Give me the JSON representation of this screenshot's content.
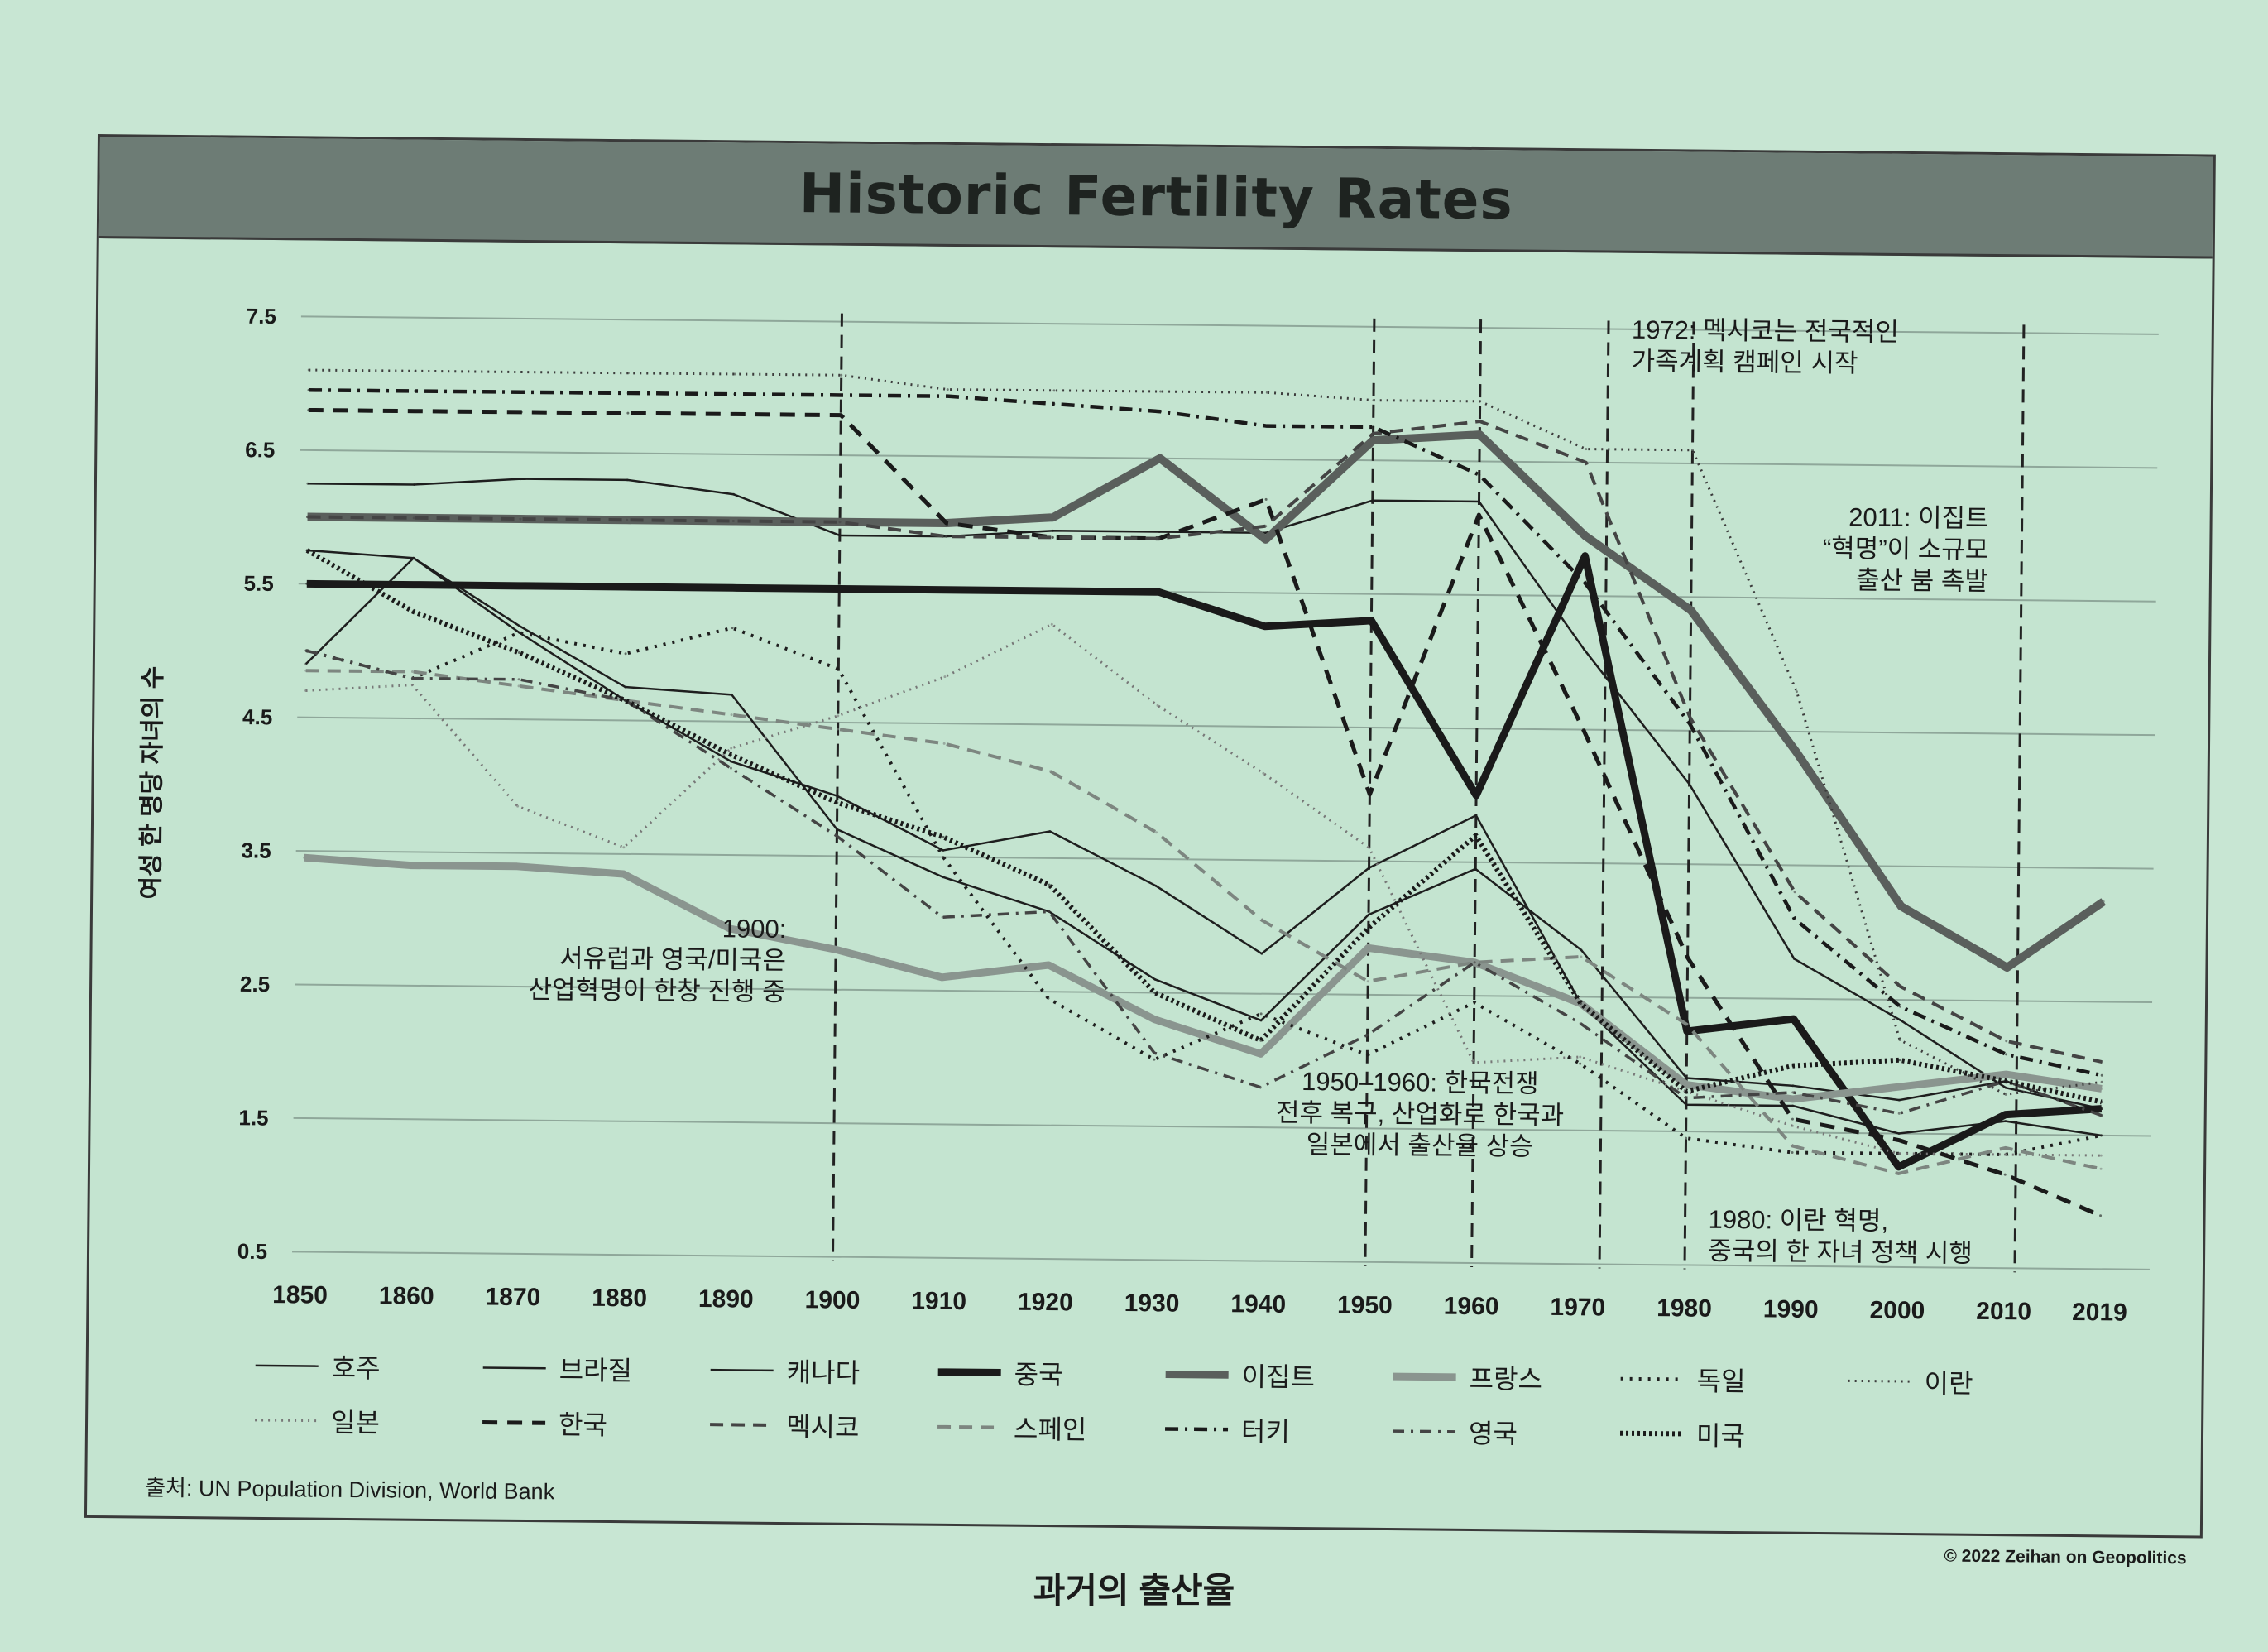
{
  "title": "Historic Fertility Rates",
  "caption": "과거의 출산율",
  "source": "출처: UN Population Division, World Bank",
  "copyright": "© 2022 Zeihan on Geopolitics",
  "chart_data": {
    "type": "line",
    "title": "Historic Fertility Rates",
    "ylabel": "여성 한 명당 자녀의 수",
    "xlabel": "",
    "ylim": [
      0.5,
      7.5
    ],
    "yticks": [
      "7.5",
      "6.5",
      "5.5",
      "4.5",
      "3.5",
      "2.5",
      "1.5",
      "0.5"
    ],
    "ytick_values": [
      7.5,
      6.5,
      5.5,
      4.5,
      3.5,
      2.5,
      1.5,
      0.5
    ],
    "x": [
      1850,
      1860,
      1870,
      1880,
      1890,
      1900,
      1910,
      1920,
      1930,
      1940,
      1950,
      1960,
      1970,
      1980,
      1990,
      2000,
      2010,
      2019
    ],
    "xtick_labels": [
      "1850",
      "1860",
      "1870",
      "1880",
      "1890",
      "1900",
      "1910",
      "1920",
      "1930",
      "1940",
      "1950",
      "1960",
      "1970",
      "1980",
      "1990",
      "2000",
      "2010",
      "2019"
    ],
    "grid": true,
    "series": [
      {
        "name": "호주",
        "style": "thin-solid",
        "values": [
          4.9,
          5.7,
          5.2,
          4.75,
          4.7,
          3.7,
          3.35,
          3.1,
          2.6,
          2.3,
          3.1,
          3.45,
          2.85,
          1.9,
          1.85,
          1.75,
          1.9,
          1.65
        ]
      },
      {
        "name": "브라질",
        "style": "thin-solid",
        "values": [
          6.25,
          6.25,
          6.3,
          6.3,
          6.2,
          5.9,
          5.9,
          5.95,
          5.95,
          5.95,
          6.2,
          6.2,
          5.1,
          4.1,
          2.8,
          2.35,
          1.85,
          1.7
        ]
      },
      {
        "name": "캐나다",
        "style": "thin-solid",
        "values": [
          5.75,
          5.7,
          5.15,
          4.65,
          4.2,
          3.95,
          3.55,
          3.7,
          3.3,
          2.8,
          3.45,
          3.85,
          2.45,
          1.7,
          1.7,
          1.5,
          1.6,
          1.5
        ]
      },
      {
        "name": "중국",
        "style": "bold-solid",
        "values": [
          5.5,
          5.5,
          5.5,
          5.5,
          5.5,
          5.5,
          5.5,
          5.5,
          5.5,
          5.25,
          5.3,
          4.0,
          5.8,
          2.25,
          2.35,
          1.25,
          1.65,
          1.7
        ]
      },
      {
        "name": "이집트",
        "style": "bold-gray",
        "values": [
          6.0,
          6.0,
          6.0,
          6.0,
          6.0,
          6.0,
          6.0,
          6.05,
          6.5,
          5.9,
          6.65,
          6.7,
          5.95,
          5.4,
          4.35,
          3.2,
          2.75,
          3.25
        ]
      },
      {
        "name": "프랑스",
        "style": "bold-lightgray",
        "values": [
          3.45,
          3.4,
          3.4,
          3.35,
          2.95,
          2.8,
          2.6,
          2.7,
          2.3,
          2.05,
          2.85,
          2.75,
          2.45,
          1.85,
          1.75,
          1.85,
          1.95,
          1.85
        ]
      },
      {
        "name": "독일",
        "style": "dotted",
        "values": [
          5.0,
          4.8,
          5.15,
          5.0,
          5.2,
          4.9,
          3.5,
          2.45,
          2.0,
          2.35,
          2.05,
          2.45,
          2.0,
          1.45,
          1.35,
          1.35,
          1.35,
          1.5
        ]
      },
      {
        "name": "이란",
        "style": "dotted-fine",
        "values": [
          7.1,
          7.1,
          7.1,
          7.1,
          7.1,
          7.1,
          7.0,
          7.0,
          7.0,
          7.0,
          6.95,
          6.95,
          6.6,
          6.6,
          4.8,
          2.2,
          1.8,
          1.9
        ]
      },
      {
        "name": "일본",
        "style": "dotted-gray",
        "values": [
          4.7,
          4.75,
          3.85,
          3.55,
          4.3,
          4.55,
          4.85,
          5.25,
          4.65,
          4.15,
          3.6,
          2.0,
          2.05,
          1.8,
          1.55,
          1.35,
          1.35,
          1.35
        ]
      },
      {
        "name": "한국",
        "style": "dashed",
        "values": [
          6.8,
          6.8,
          6.8,
          6.8,
          6.8,
          6.8,
          6.0,
          5.9,
          5.9,
          6.2,
          4.0,
          6.1,
          4.5,
          2.8,
          1.6,
          1.45,
          1.2,
          0.9
        ]
      },
      {
        "name": "멕시코",
        "style": "dashed-gray",
        "values": [
          6.0,
          6.0,
          6.0,
          6.0,
          6.0,
          6.0,
          5.9,
          5.9,
          5.9,
          6.0,
          6.7,
          6.8,
          6.5,
          4.6,
          3.3,
          2.6,
          2.2,
          2.05
        ]
      },
      {
        "name": "스페인",
        "style": "dashed-light",
        "values": [
          4.85,
          4.85,
          4.75,
          4.65,
          4.55,
          4.45,
          4.35,
          4.15,
          3.7,
          3.05,
          2.6,
          2.75,
          2.8,
          2.3,
          1.4,
          1.2,
          1.4,
          1.25
        ]
      },
      {
        "name": "터키",
        "style": "dash-dot",
        "values": [
          6.95,
          6.95,
          6.95,
          6.95,
          6.95,
          6.95,
          6.95,
          6.9,
          6.85,
          6.75,
          6.75,
          6.4,
          5.6,
          4.55,
          3.1,
          2.45,
          2.1,
          1.95
        ]
      },
      {
        "name": "영국",
        "style": "dash-dot-gray",
        "values": [
          5.0,
          4.8,
          4.8,
          4.65,
          4.15,
          3.65,
          3.05,
          3.1,
          2.05,
          1.8,
          2.2,
          2.75,
          2.3,
          1.75,
          1.8,
          1.65,
          1.9,
          1.65
        ]
      },
      {
        "name": "미국",
        "style": "dense-dotted",
        "values": [
          5.75,
          5.3,
          5.0,
          4.65,
          4.25,
          3.9,
          3.65,
          3.3,
          2.5,
          2.15,
          3.0,
          3.7,
          2.45,
          1.8,
          2.0,
          2.05,
          1.9,
          1.75
        ]
      }
    ],
    "annotations": [
      {
        "year": 1900,
        "lines": [
          "1900:",
          "서유럽과 영국/미국은",
          "산업혁명이 한창 진행 중"
        ]
      },
      {
        "year": 1950,
        "lines": [
          "1950–1960: 한국전쟁",
          "전후 복구, 산업화로 한국과",
          "일본에서 출산율 상승"
        ]
      },
      {
        "year": 1972,
        "lines": [
          "1972: 멕시코는 전국적인",
          "가족계획 캠페인 시작"
        ]
      },
      {
        "year": 1980,
        "lines": [
          "1980: 이란 혁명,",
          "중국의 한 자녀 정책 시행"
        ]
      },
      {
        "year": 2011,
        "lines": [
          "2011: 이집트",
          "“혁명”이 소규모",
          "출산 붐 촉발"
        ]
      }
    ]
  }
}
